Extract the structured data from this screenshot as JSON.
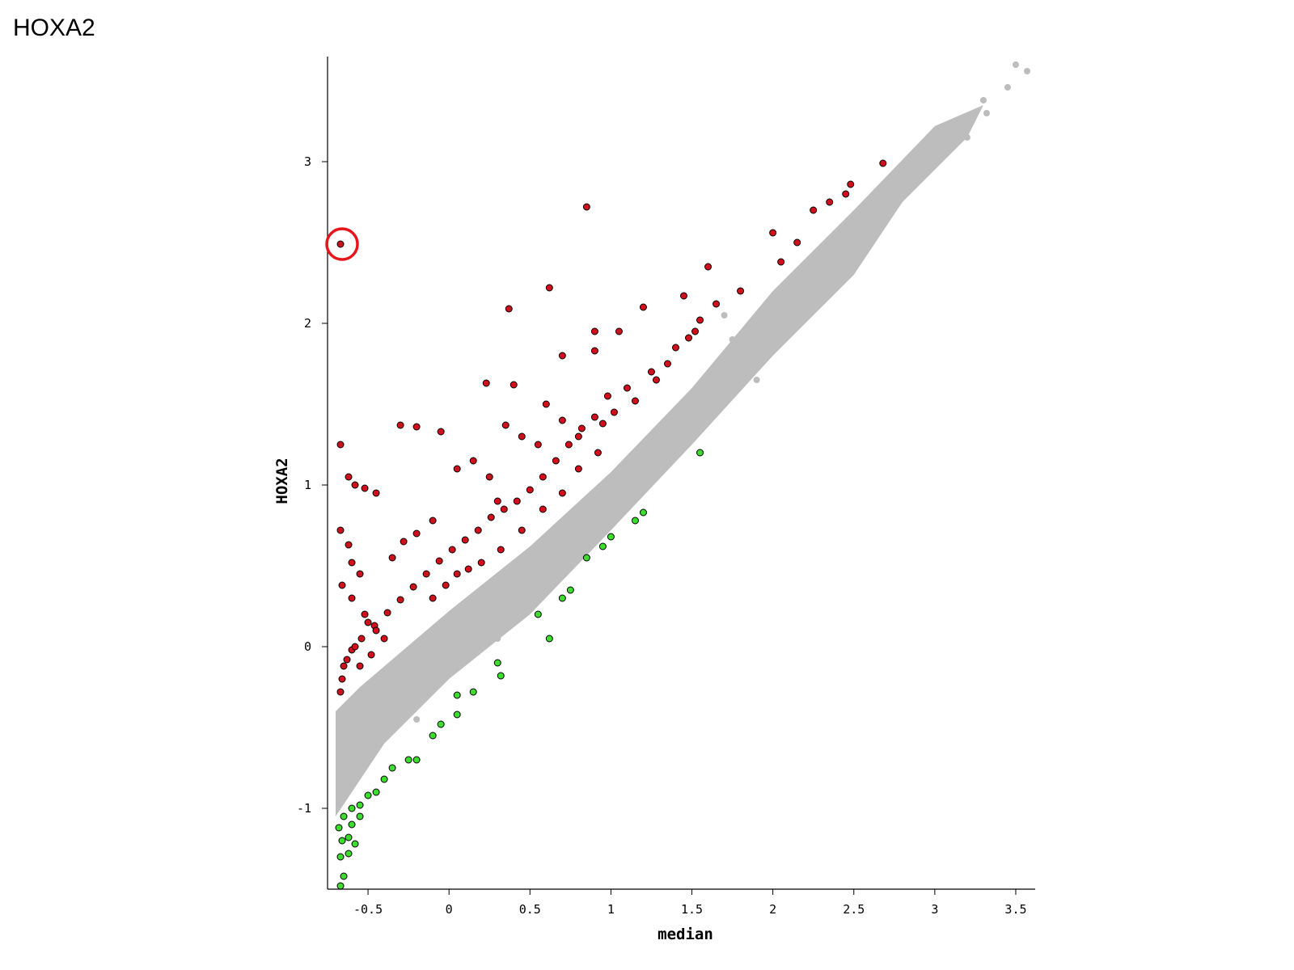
{
  "page": {
    "title": "HOXA2"
  },
  "chart_data": {
    "type": "scatter",
    "title": "",
    "xlabel": "median",
    "ylabel": "HOXA2",
    "xlim": [
      -0.75,
      3.62
    ],
    "ylim": [
      -1.5,
      3.65
    ],
    "x_ticks": [
      -0.5,
      0,
      0.5,
      1,
      1.5,
      2,
      2.5,
      3,
      3.5
    ],
    "x_tick_labels": [
      "-0.5",
      "0",
      "0.5",
      "1",
      "1.5",
      "2",
      "2.5",
      "3",
      "3.5"
    ],
    "y_ticks": [
      -1,
      0,
      1,
      2,
      3
    ],
    "y_tick_labels": [
      "-1",
      "0",
      "1",
      "2",
      "3"
    ],
    "grid": false,
    "legend": "none",
    "colors": {
      "background": "#bdbdbd",
      "up": "#d0101c",
      "down": "#3ddc2e",
      "highlight_ring": "#e8141c",
      "outline": "#000000"
    },
    "background_band": {
      "description": "dense cloud of non-significant genes along the diagonal",
      "polygon": [
        [
          -0.7,
          -0.4
        ],
        [
          -0.55,
          -0.25
        ],
        [
          0,
          0.22
        ],
        [
          0.5,
          0.62
        ],
        [
          1,
          1.08
        ],
        [
          1.5,
          1.6
        ],
        [
          2,
          2.2
        ],
        [
          2.5,
          2.7
        ],
        [
          3,
          3.22
        ],
        [
          3.3,
          3.35
        ],
        [
          3.2,
          3.15
        ],
        [
          2.8,
          2.75
        ],
        [
          2.5,
          2.3
        ],
        [
          2,
          1.8
        ],
        [
          1.5,
          1.25
        ],
        [
          1,
          0.72
        ],
        [
          0.5,
          0.2
        ],
        [
          0,
          -0.2
        ],
        [
          -0.4,
          -0.6
        ],
        [
          -0.7,
          -1.05
        ]
      ]
    },
    "series": [
      {
        "name": "",
        "role": "background",
        "color": "#bdbdbd",
        "points": [
          [
            3.5,
            3.6
          ],
          [
            3.57,
            3.56
          ],
          [
            3.45,
            3.46
          ],
          [
            3.32,
            3.3
          ],
          [
            3.3,
            3.38
          ],
          [
            3.2,
            3.15
          ],
          [
            3.1,
            3.12
          ],
          [
            3.0,
            3.05
          ],
          [
            2.9,
            2.97
          ],
          [
            2.85,
            2.95
          ],
          [
            2.75,
            2.86
          ],
          [
            2.7,
            2.8
          ],
          [
            2.6,
            2.68
          ],
          [
            1.75,
            1.9
          ],
          [
            1.7,
            2.05
          ],
          [
            1.55,
            1.2
          ],
          [
            1.9,
            1.65
          ],
          [
            1.5,
            1.48
          ],
          [
            0.3,
            0.05
          ],
          [
            -0.2,
            -0.45
          ]
        ]
      },
      {
        "name": "",
        "role": "up",
        "color": "#d0101c",
        "points": [
          [
            -0.67,
            2.49
          ],
          [
            0.85,
            2.72
          ],
          [
            0.62,
            2.22
          ],
          [
            0.37,
            2.09
          ],
          [
            0.7,
            1.8
          ],
          [
            0.23,
            1.63
          ],
          [
            0.4,
            1.62
          ],
          [
            -0.3,
            1.37
          ],
          [
            -0.2,
            1.36
          ],
          [
            -0.05,
            1.33
          ],
          [
            0.35,
            1.37
          ],
          [
            0.6,
            1.5
          ],
          [
            0.9,
            1.95
          ],
          [
            0.9,
            1.83
          ],
          [
            1.6,
            2.35
          ],
          [
            1.45,
            2.17
          ],
          [
            1.2,
            2.1
          ],
          [
            1.05,
            1.95
          ],
          [
            1.35,
            1.75
          ],
          [
            2.0,
            2.56
          ],
          [
            2.25,
            2.7
          ],
          [
            2.35,
            2.75
          ],
          [
            2.45,
            2.8
          ],
          [
            2.48,
            2.86
          ],
          [
            2.68,
            2.99
          ],
          [
            2.15,
            2.5
          ],
          [
            2.05,
            2.38
          ],
          [
            1.8,
            2.2
          ],
          [
            1.65,
            2.12
          ],
          [
            1.55,
            2.02
          ],
          [
            1.48,
            1.91
          ],
          [
            1.28,
            1.65
          ],
          [
            1.1,
            1.6
          ],
          [
            0.98,
            1.55
          ],
          [
            0.9,
            1.42
          ],
          [
            0.82,
            1.35
          ],
          [
            0.74,
            1.25
          ],
          [
            0.66,
            1.15
          ],
          [
            0.58,
            1.05
          ],
          [
            0.5,
            0.97
          ],
          [
            0.42,
            0.9
          ],
          [
            0.34,
            0.85
          ],
          [
            0.26,
            0.8
          ],
          [
            0.18,
            0.72
          ],
          [
            0.1,
            0.66
          ],
          [
            0.02,
            0.6
          ],
          [
            -0.06,
            0.53
          ],
          [
            -0.14,
            0.45
          ],
          [
            -0.22,
            0.37
          ],
          [
            -0.3,
            0.29
          ],
          [
            -0.38,
            0.21
          ],
          [
            -0.46,
            0.13
          ],
          [
            -0.54,
            0.05
          ],
          [
            -0.6,
            -0.02
          ],
          [
            -0.65,
            -0.12
          ],
          [
            -0.66,
            -0.2
          ],
          [
            -0.67,
            -0.28
          ],
          [
            -0.67,
            1.25
          ],
          [
            -0.62,
            1.05
          ],
          [
            -0.58,
            1.0
          ],
          [
            -0.52,
            0.98
          ],
          [
            -0.45,
            0.95
          ],
          [
            -0.67,
            0.72
          ],
          [
            -0.62,
            0.63
          ],
          [
            -0.6,
            0.52
          ],
          [
            -0.55,
            0.45
          ],
          [
            -0.66,
            0.38
          ],
          [
            -0.6,
            0.3
          ],
          [
            -0.52,
            0.2
          ],
          [
            -0.45,
            0.1
          ],
          [
            -0.35,
            0.55
          ],
          [
            -0.28,
            0.65
          ],
          [
            -0.2,
            0.7
          ],
          [
            -0.1,
            0.78
          ],
          [
            0.05,
            1.1
          ],
          [
            0.15,
            1.15
          ],
          [
            0.25,
            1.05
          ],
          [
            0.3,
            0.9
          ],
          [
            0.45,
            1.3
          ],
          [
            0.55,
            1.25
          ],
          [
            0.7,
            1.4
          ],
          [
            0.8,
            1.3
          ],
          [
            0.95,
            1.38
          ],
          [
            1.02,
            1.45
          ],
          [
            1.15,
            1.52
          ],
          [
            1.25,
            1.7
          ],
          [
            1.4,
            1.85
          ],
          [
            1.52,
            1.95
          ],
          [
            0.12,
            0.48
          ],
          [
            0.2,
            0.52
          ],
          [
            0.32,
            0.6
          ],
          [
            0.45,
            0.72
          ],
          [
            0.58,
            0.85
          ],
          [
            0.7,
            0.95
          ],
          [
            0.8,
            1.1
          ],
          [
            0.92,
            1.2
          ],
          [
            -0.1,
            0.3
          ],
          [
            -0.02,
            0.38
          ],
          [
            0.05,
            0.45
          ],
          [
            -0.4,
            0.05
          ],
          [
            -0.48,
            -0.05
          ],
          [
            -0.55,
            -0.12
          ],
          [
            -0.5,
            0.15
          ],
          [
            -0.58,
            0.0
          ],
          [
            -0.63,
            -0.08
          ]
        ]
      },
      {
        "name": "",
        "role": "down",
        "color": "#3ddc2e",
        "points": [
          [
            1.55,
            1.2
          ],
          [
            1.2,
            0.83
          ],
          [
            1.15,
            0.78
          ],
          [
            1.0,
            0.68
          ],
          [
            0.95,
            0.62
          ],
          [
            0.85,
            0.55
          ],
          [
            0.75,
            0.35
          ],
          [
            0.7,
            0.3
          ],
          [
            0.55,
            0.2
          ],
          [
            0.62,
            0.05
          ],
          [
            0.3,
            -0.1
          ],
          [
            0.32,
            -0.18
          ],
          [
            0.15,
            -0.28
          ],
          [
            0.05,
            -0.3
          ],
          [
            0.05,
            -0.42
          ],
          [
            -0.05,
            -0.48
          ],
          [
            -0.1,
            -0.55
          ],
          [
            -0.2,
            -0.7
          ],
          [
            -0.25,
            -0.7
          ],
          [
            -0.35,
            -0.75
          ],
          [
            -0.4,
            -0.82
          ],
          [
            -0.45,
            -0.9
          ],
          [
            -0.5,
            -0.92
          ],
          [
            -0.55,
            -0.98
          ],
          [
            -0.6,
            -1.0
          ],
          [
            -0.65,
            -1.05
          ],
          [
            -0.68,
            -1.12
          ],
          [
            -0.66,
            -1.2
          ],
          [
            -0.62,
            -1.18
          ],
          [
            -0.58,
            -1.22
          ],
          [
            -0.67,
            -1.3
          ],
          [
            -0.62,
            -1.28
          ],
          [
            -0.65,
            -1.42
          ],
          [
            -0.67,
            -1.48
          ],
          [
            -0.6,
            -1.1
          ],
          [
            -0.55,
            -1.05
          ]
        ]
      }
    ],
    "highlight": {
      "x": -0.66,
      "y": 2.49,
      "label": ""
    }
  }
}
